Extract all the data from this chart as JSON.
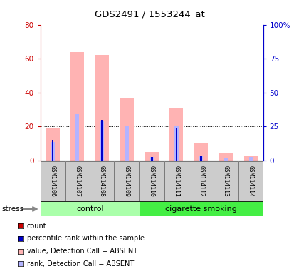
{
  "title": "GDS2491 / 1553244_at",
  "samples": [
    "GSM114106",
    "GSM114107",
    "GSM114108",
    "GSM114109",
    "GSM114110",
    "GSM114111",
    "GSM114112",
    "GSM114113",
    "GSM114114"
  ],
  "value_absent": [
    19,
    64,
    62,
    37,
    5,
    31,
    10,
    4,
    3
  ],
  "rank_absent": [
    11,
    27,
    23,
    20,
    2,
    20,
    3,
    1,
    2
  ],
  "percentile": [
    12,
    0,
    24,
    0,
    2,
    19,
    3,
    0,
    0
  ],
  "ylim_left": [
    0,
    80
  ],
  "ylim_right": [
    0,
    100
  ],
  "yticks_left": [
    0,
    20,
    40,
    60,
    80
  ],
  "yticks_right": [
    0,
    25,
    50,
    75,
    100
  ],
  "ytick_labels_right": [
    "0",
    "25",
    "50",
    "75",
    "100%"
  ],
  "value_absent_color": "#ffb3b3",
  "rank_absent_color": "#b3b3ff",
  "count_color": "#cc0000",
  "percentile_color": "#0000cc",
  "bg_color": "#cccccc",
  "left_tick_color": "#cc0000",
  "right_tick_color": "#0000cc",
  "control_color": "#aaffaa",
  "smoke_color": "#44ee44",
  "n_control": 4,
  "n_smoke": 5
}
